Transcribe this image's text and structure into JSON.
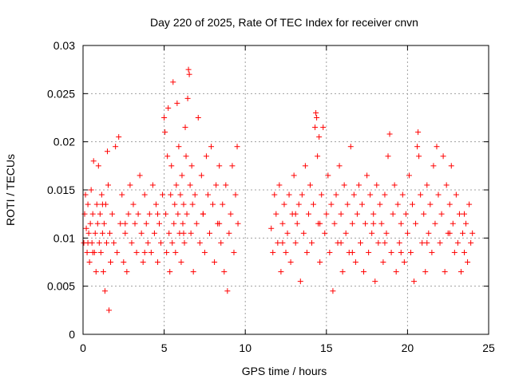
{
  "chart_data": {
    "type": "scatter",
    "title": "Day 220 of 2025, Rate Of TEC Index for receiver cnvn",
    "xlabel": "GPS time / hours",
    "ylabel": "ROTI / TECUs",
    "xlim": [
      0,
      25
    ],
    "ylim": [
      0,
      0.03
    ],
    "x_ticks": [
      "0",
      "5",
      "10",
      "15",
      "20",
      "25"
    ],
    "y_ticks": [
      "0",
      "0.005",
      "0.01",
      "0.015",
      "0.02",
      "0.025",
      "0.03"
    ],
    "grid": true,
    "marker": "plus",
    "series": [
      {
        "color": "#ff0000",
        "points": [
          [
            0.05,
            0.0095
          ],
          [
            0.1,
            0.0125
          ],
          [
            0.15,
            0.0145
          ],
          [
            0.2,
            0.011
          ],
          [
            0.25,
            0.0085
          ],
          [
            0.3,
            0.0135
          ],
          [
            0.35,
            0.0105
          ],
          [
            0.4,
            0.0075
          ],
          [
            0.45,
            0.0115
          ],
          [
            0.5,
            0.015
          ],
          [
            0.55,
            0.0095
          ],
          [
            0.6,
            0.0125
          ],
          [
            0.65,
            0.018
          ],
          [
            0.7,
            0.0085
          ],
          [
            0.75,
            0.0105
          ],
          [
            0.8,
            0.0065
          ],
          [
            0.85,
            0.0135
          ],
          [
            0.9,
            0.0115
          ],
          [
            0.95,
            0.0175
          ],
          [
            1.0,
            0.0095
          ],
          [
            1.05,
            0.0125
          ],
          [
            1.1,
            0.0085
          ],
          [
            1.15,
            0.0145
          ],
          [
            1.2,
            0.0105
          ],
          [
            1.25,
            0.0065
          ],
          [
            1.3,
            0.0115
          ],
          [
            1.35,
            0.0045
          ],
          [
            1.4,
            0.0135
          ],
          [
            1.45,
            0.0095
          ],
          [
            1.5,
            0.019
          ],
          [
            1.55,
            0.0155
          ],
          [
            1.6,
            0.0025
          ],
          [
            1.65,
            0.0105
          ],
          [
            1.7,
            0.0075
          ],
          [
            1.8,
            0.0125
          ],
          [
            1.9,
            0.0095
          ],
          [
            2.0,
            0.0195
          ],
          [
            2.1,
            0.0085
          ],
          [
            2.2,
            0.0205
          ],
          [
            2.3,
            0.0115
          ],
          [
            2.4,
            0.0145
          ],
          [
            2.5,
            0.0075
          ],
          [
            2.6,
            0.0105
          ],
          [
            2.7,
            0.0065
          ],
          [
            2.8,
            0.0125
          ],
          [
            2.9,
            0.0155
          ],
          [
            3.0,
            0.0095
          ],
          [
            3.1,
            0.0135
          ],
          [
            3.2,
            0.0115
          ],
          [
            3.3,
            0.0085
          ],
          [
            3.4,
            0.0125
          ],
          [
            3.5,
            0.0165
          ],
          [
            3.6,
            0.0105
          ],
          [
            3.7,
            0.0075
          ],
          [
            3.8,
            0.0145
          ],
          [
            3.9,
            0.0115
          ],
          [
            4.0,
            0.0095
          ],
          [
            4.1,
            0.0125
          ],
          [
            4.2,
            0.0085
          ],
          [
            4.3,
            0.0155
          ],
          [
            4.4,
            0.0105
          ],
          [
            4.5,
            0.0135
          ],
          [
            4.6,
            0.0075
          ],
          [
            4.7,
            0.0115
          ],
          [
            4.8,
            0.0095
          ],
          [
            4.9,
            0.0145
          ],
          [
            5.0,
            0.0225
          ],
          [
            5.05,
            0.021
          ],
          [
            5.1,
            0.0125
          ],
          [
            5.15,
            0.0085
          ],
          [
            5.2,
            0.0185
          ],
          [
            5.25,
            0.0235
          ],
          [
            5.3,
            0.0105
          ],
          [
            5.35,
            0.0065
          ],
          [
            5.4,
            0.0145
          ],
          [
            5.45,
            0.0175
          ],
          [
            5.5,
            0.0095
          ],
          [
            5.55,
            0.0262
          ],
          [
            5.6,
            0.0115
          ],
          [
            5.65,
            0.0135
          ],
          [
            5.7,
            0.0085
          ],
          [
            5.75,
            0.0155
          ],
          [
            5.8,
            0.024
          ],
          [
            5.85,
            0.0125
          ],
          [
            5.9,
            0.0195
          ],
          [
            5.95,
            0.0105
          ],
          [
            6.0,
            0.0145
          ],
          [
            6.05,
            0.0075
          ],
          [
            6.1,
            0.0165
          ],
          [
            6.15,
            0.0115
          ],
          [
            6.2,
            0.0135
          ],
          [
            6.25,
            0.0095
          ],
          [
            6.3,
            0.0215
          ],
          [
            6.35,
            0.0185
          ],
          [
            6.4,
            0.0125
          ],
          [
            6.45,
            0.0245
          ],
          [
            6.5,
            0.0275
          ],
          [
            6.55,
            0.027
          ],
          [
            6.6,
            0.0155
          ],
          [
            6.65,
            0.0105
          ],
          [
            6.7,
            0.0175
          ],
          [
            6.75,
            0.0135
          ],
          [
            6.8,
            0.0065
          ],
          [
            6.9,
            0.0145
          ],
          [
            7.0,
            0.0115
          ],
          [
            7.1,
            0.0225
          ],
          [
            7.2,
            0.0095
          ],
          [
            7.3,
            0.0165
          ],
          [
            7.4,
            0.0125
          ],
          [
            7.5,
            0.0085
          ],
          [
            7.6,
            0.0185
          ],
          [
            7.7,
            0.0145
          ],
          [
            7.8,
            0.0105
          ],
          [
            7.9,
            0.0195
          ],
          [
            8.0,
            0.0135
          ],
          [
            8.1,
            0.0075
          ],
          [
            8.2,
            0.0155
          ],
          [
            8.3,
            0.0115
          ],
          [
            8.4,
            0.0175
          ],
          [
            8.5,
            0.0095
          ],
          [
            8.6,
            0.0135
          ],
          [
            8.7,
            0.0065
          ],
          [
            8.8,
            0.0155
          ],
          [
            8.9,
            0.0045
          ],
          [
            9.0,
            0.0105
          ],
          [
            9.1,
            0.0125
          ],
          [
            9.2,
            0.0175
          ],
          [
            9.3,
            0.0085
          ],
          [
            9.4,
            0.0145
          ],
          [
            9.5,
            0.0195
          ],
          [
            9.55,
            0.0115
          ],
          [
            0.3,
            0.0095
          ],
          [
            0.6,
            0.0085
          ],
          [
            1.2,
            0.0135
          ],
          [
            2.6,
            0.0115
          ],
          [
            3.8,
            0.0085
          ],
          [
            4.6,
            0.0125
          ],
          [
            6.2,
            0.0105
          ],
          [
            7.4,
            0.0125
          ],
          [
            8.4,
            0.0115
          ],
          [
            11.6,
            0.011
          ],
          [
            11.7,
            0.0085
          ],
          [
            11.8,
            0.0145
          ],
          [
            11.9,
            0.0125
          ],
          [
            12.0,
            0.0095
          ],
          [
            12.1,
            0.0155
          ],
          [
            12.2,
            0.0065
          ],
          [
            12.3,
            0.0115
          ],
          [
            12.4,
            0.0135
          ],
          [
            12.5,
            0.0085
          ],
          [
            12.6,
            0.0105
          ],
          [
            12.7,
            0.0145
          ],
          [
            12.8,
            0.0075
          ],
          [
            12.9,
            0.0125
          ],
          [
            13.0,
            0.0165
          ],
          [
            13.1,
            0.0095
          ],
          [
            13.2,
            0.0115
          ],
          [
            13.3,
            0.0135
          ],
          [
            13.4,
            0.0055
          ],
          [
            13.5,
            0.0145
          ],
          [
            13.6,
            0.0105
          ],
          [
            13.7,
            0.0175
          ],
          [
            13.8,
            0.0085
          ],
          [
            13.9,
            0.0125
          ],
          [
            14.0,
            0.0155
          ],
          [
            14.1,
            0.0095
          ],
          [
            14.2,
            0.0135
          ],
          [
            14.3,
            0.0215
          ],
          [
            14.35,
            0.023
          ],
          [
            14.4,
            0.0225
          ],
          [
            14.45,
            0.0185
          ],
          [
            14.5,
            0.0115
          ],
          [
            14.55,
            0.0205
          ],
          [
            14.6,
            0.0075
          ],
          [
            14.7,
            0.0145
          ],
          [
            14.8,
            0.0215
          ],
          [
            14.9,
            0.0105
          ],
          [
            15.0,
            0.0125
          ],
          [
            15.1,
            0.0165
          ],
          [
            15.2,
            0.0085
          ],
          [
            15.3,
            0.0135
          ],
          [
            15.4,
            0.0045
          ],
          [
            15.5,
            0.0115
          ],
          [
            15.6,
            0.0145
          ],
          [
            15.7,
            0.0095
          ],
          [
            15.8,
            0.0175
          ],
          [
            15.9,
            0.0125
          ],
          [
            16.0,
            0.0065
          ],
          [
            16.1,
            0.0155
          ],
          [
            16.2,
            0.0105
          ],
          [
            16.3,
            0.0135
          ],
          [
            16.4,
            0.0085
          ],
          [
            16.5,
            0.0195
          ],
          [
            16.6,
            0.0115
          ],
          [
            16.7,
            0.0145
          ],
          [
            16.8,
            0.0075
          ],
          [
            16.9,
            0.0125
          ],
          [
            17.0,
            0.0155
          ],
          [
            17.1,
            0.0095
          ],
          [
            17.2,
            0.0135
          ],
          [
            17.3,
            0.0065
          ],
          [
            17.4,
            0.0115
          ],
          [
            17.5,
            0.0165
          ],
          [
            17.6,
            0.0085
          ],
          [
            17.7,
            0.0145
          ],
          [
            17.8,
            0.0105
          ],
          [
            17.9,
            0.0125
          ],
          [
            18.0,
            0.0055
          ],
          [
            18.1,
            0.0155
          ],
          [
            18.2,
            0.0095
          ],
          [
            18.3,
            0.0135
          ],
          [
            18.4,
            0.0115
          ],
          [
            18.5,
            0.0075
          ],
          [
            18.6,
            0.0145
          ],
          [
            18.7,
            0.0105
          ],
          [
            18.8,
            0.0185
          ],
          [
            18.9,
            0.0208
          ],
          [
            19.0,
            0.0085
          ],
          [
            19.1,
            0.0125
          ],
          [
            19.2,
            0.0155
          ],
          [
            19.3,
            0.0065
          ],
          [
            19.4,
            0.0135
          ],
          [
            19.5,
            0.0095
          ],
          [
            19.6,
            0.0115
          ],
          [
            19.7,
            0.0145
          ],
          [
            19.8,
            0.0075
          ],
          [
            19.9,
            0.0125
          ],
          [
            20.0,
            0.0105
          ],
          [
            20.1,
            0.0165
          ],
          [
            20.2,
            0.0085
          ],
          [
            20.3,
            0.0135
          ],
          [
            20.4,
            0.0055
          ],
          [
            20.5,
            0.0115
          ],
          [
            20.6,
            0.0195
          ],
          [
            20.65,
            0.021
          ],
          [
            20.7,
            0.0185
          ],
          [
            20.8,
            0.0145
          ],
          [
            20.9,
            0.0095
          ],
          [
            21.0,
            0.0125
          ],
          [
            21.1,
            0.0065
          ],
          [
            21.2,
            0.0155
          ],
          [
            21.3,
            0.0105
          ],
          [
            21.4,
            0.0135
          ],
          [
            21.5,
            0.0085
          ],
          [
            21.6,
            0.0175
          ],
          [
            21.7,
            0.0115
          ],
          [
            21.8,
            0.0195
          ],
          [
            21.9,
            0.0145
          ],
          [
            22.0,
            0.0095
          ],
          [
            22.1,
            0.0125
          ],
          [
            22.2,
            0.0185
          ],
          [
            22.3,
            0.0065
          ],
          [
            22.4,
            0.0155
          ],
          [
            22.5,
            0.0105
          ],
          [
            22.6,
            0.0135
          ],
          [
            22.7,
            0.0175
          ],
          [
            22.8,
            0.0115
          ],
          [
            22.9,
            0.0085
          ],
          [
            23.0,
            0.0145
          ],
          [
            23.1,
            0.0095
          ],
          [
            23.2,
            0.0125
          ],
          [
            23.3,
            0.0065
          ],
          [
            23.4,
            0.0105
          ],
          [
            23.5,
            0.0085
          ],
          [
            23.6,
            0.0115
          ],
          [
            23.7,
            0.0075
          ],
          [
            23.8,
            0.0135
          ],
          [
            23.9,
            0.0095
          ],
          [
            24.0,
            0.0105
          ],
          [
            12.3,
            0.0095
          ],
          [
            13.1,
            0.0125
          ],
          [
            14.6,
            0.0115
          ],
          [
            15.9,
            0.0095
          ],
          [
            16.6,
            0.0085
          ],
          [
            17.9,
            0.0115
          ],
          [
            18.6,
            0.0095
          ],
          [
            19.6,
            0.0085
          ],
          [
            21.2,
            0.0095
          ],
          [
            22.6,
            0.0105
          ],
          [
            23.5,
            0.0125
          ]
        ]
      }
    ]
  }
}
